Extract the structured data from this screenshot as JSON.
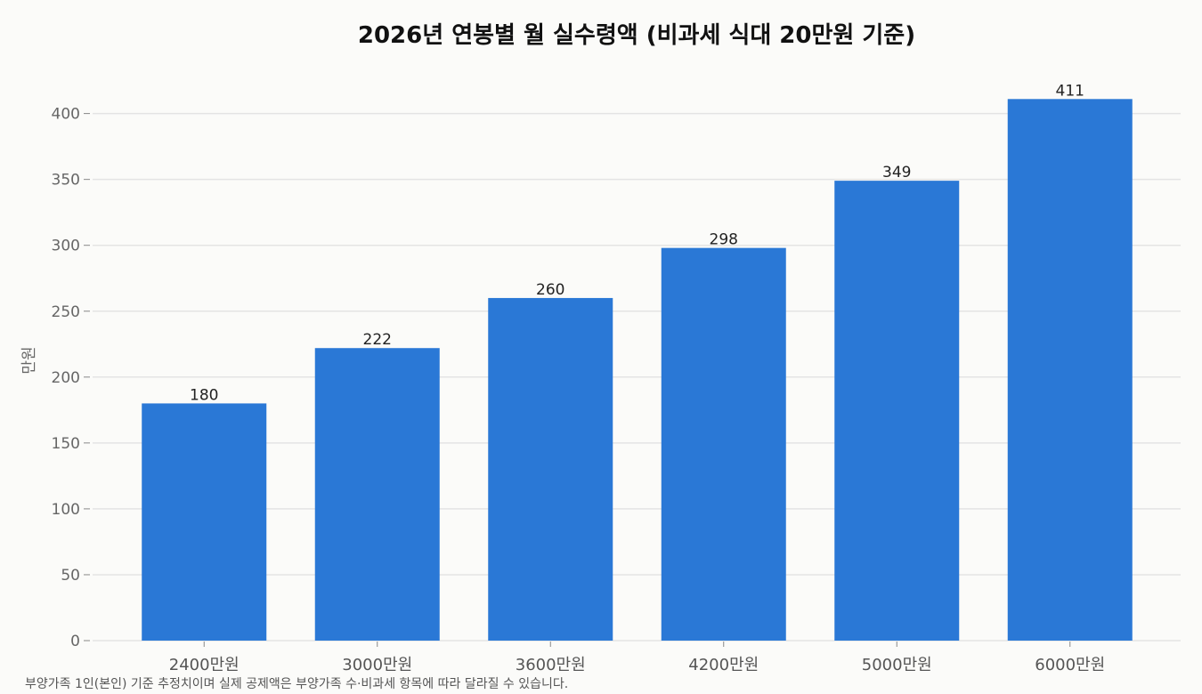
{
  "chart_data": {
    "type": "bar",
    "title": "2026년 연봉별 월 실수령액 (비과세 식대 20만원 기준)",
    "xlabel": "",
    "ylabel": "만원",
    "categories": [
      "2400만원",
      "3000만원",
      "3600만원",
      "4200만원",
      "5000만원",
      "6000만원"
    ],
    "values": [
      180,
      222,
      260,
      298,
      349,
      411
    ],
    "ylim": [
      0,
      430
    ],
    "yticks": [
      0,
      50,
      100,
      150,
      200,
      250,
      300,
      350,
      400
    ],
    "grid": "horizontal",
    "bar_color": "#2a78d6"
  },
  "footnote": "부양가족 1인(본인) 기준 추정치이며 실제 공제액은 부양가족 수·비과세 항목에 따라 달라질 수 있습니다."
}
